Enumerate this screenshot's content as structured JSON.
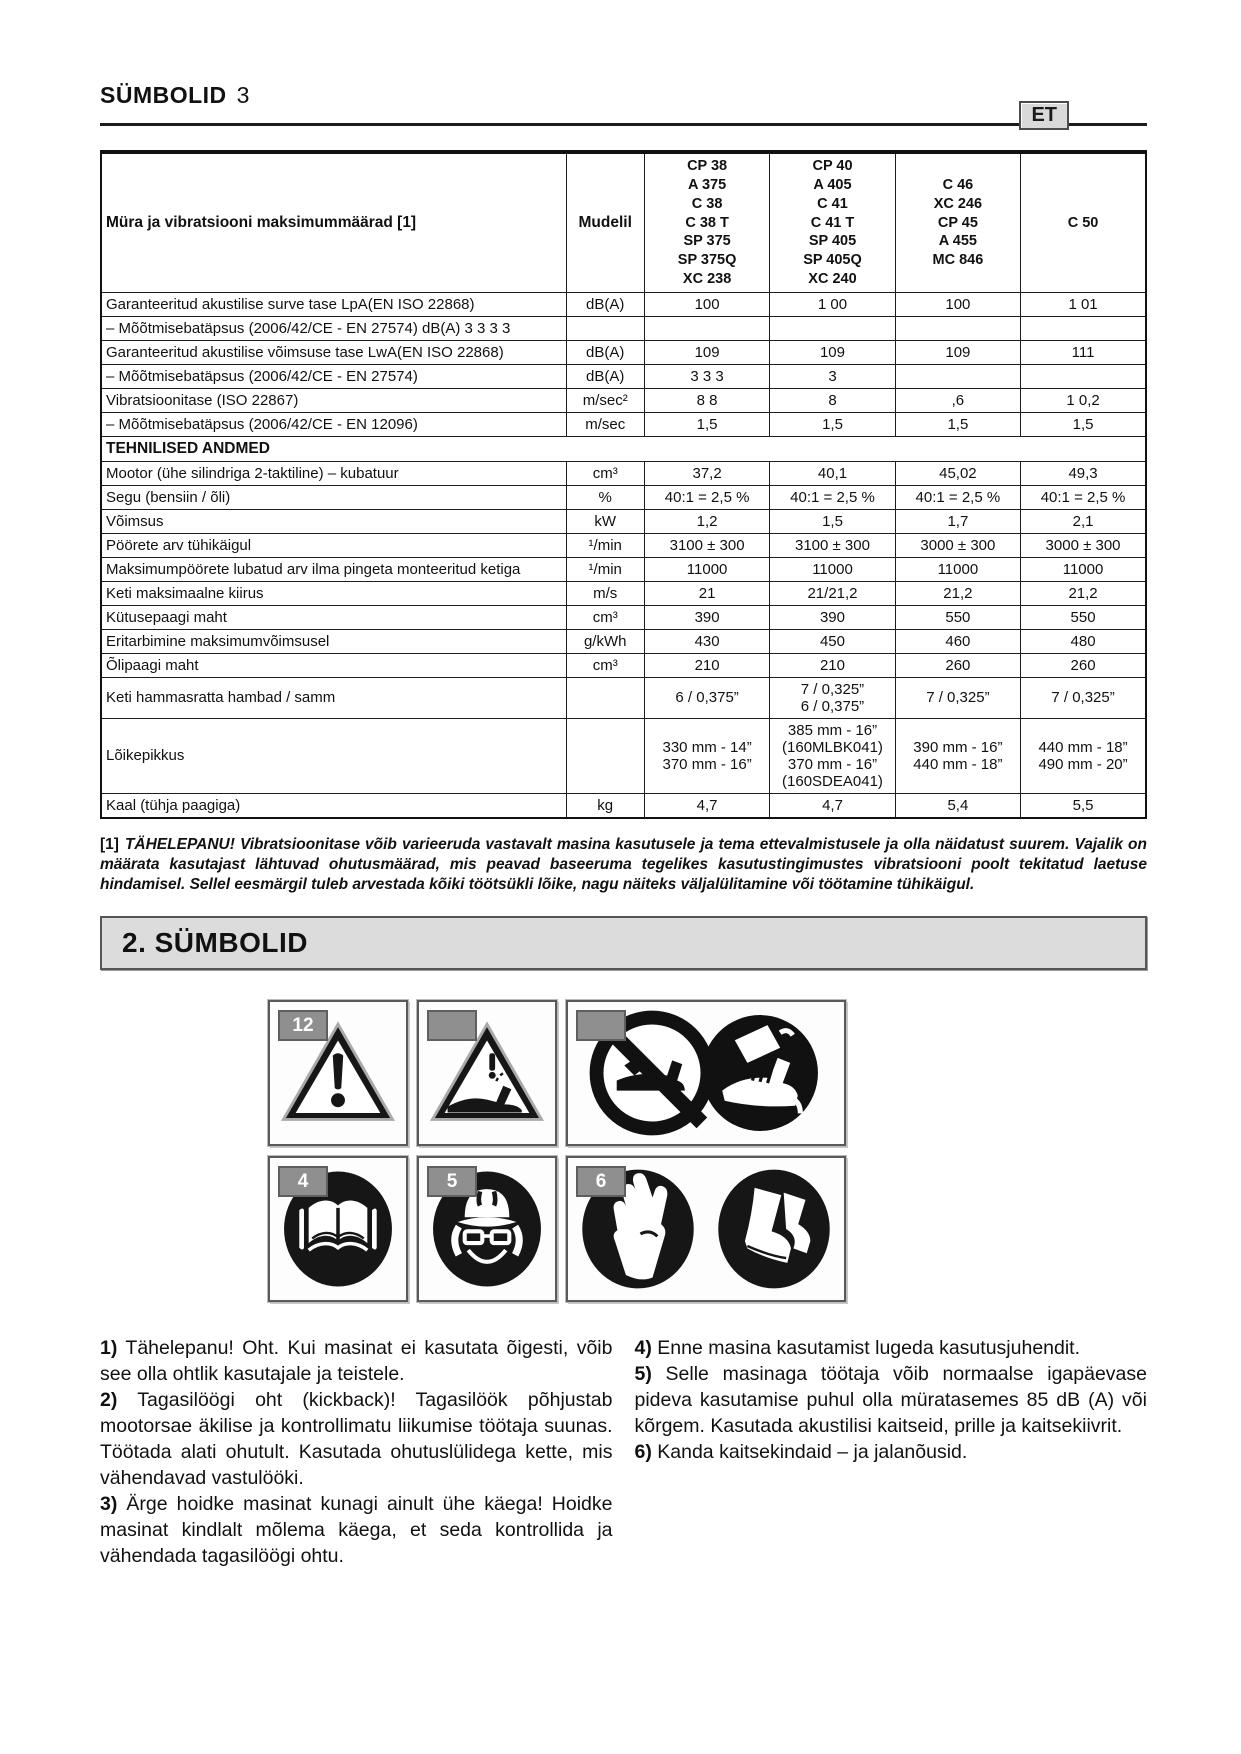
{
  "page": {
    "header_title": "SÜMBOLID",
    "header_number": "3",
    "lang_badge": "ET"
  },
  "colors": {
    "tag_bg": "#8f8f8f",
    "section_bar_bg": "#dcdcdc",
    "badge_bg": "#d9d9d9",
    "ink": "#111111"
  },
  "table": {
    "header": {
      "label": "Müra ja vibratsiooni maksimummäärad [1]",
      "unit": "Mudelil",
      "models": [
        "CP 38\nA 375\nC 38\nC 38 T\nSP 375\nSP 375Q\nXC 238",
        "CP 40\nA 405\nC 41\nC 41 T\nSP 405\nSP 405Q\nXC 240",
        "C 46\nXC 246\nCP 45\nA 455\nMC 846",
        "C 50"
      ]
    },
    "rows": [
      {
        "label": "Garanteeritud akustilise surve tase LpA(EN ISO 22868)",
        "unit": "dB(A)",
        "values": [
          "100",
          "1 00",
          "100",
          "1 01"
        ]
      },
      {
        "label": "– Mõõtmisebatäpsus (2006/42/CE - EN 27574)  dB(A)  3  3  3  3",
        "unit": "",
        "values": [
          "",
          "",
          "",
          ""
        ]
      },
      {
        "label": "Garanteeritud akustilise võimsuse tase LwA(EN ISO 22868)",
        "unit": "dB(A)",
        "values": [
          "109",
          "109",
          "109",
          "111"
        ]
      },
      {
        "label": "– Mõõtmisebatäpsus (2006/42/CE - EN 27574)",
        "unit": "dB(A)",
        "values": [
          "3 3 3",
          "3",
          "",
          ""
        ]
      },
      {
        "label": "Vibratsioonitase (ISO 22867)",
        "unit": "m/sec²",
        "values": [
          "8 8",
          "8",
          ",6",
          "1 0,2"
        ]
      },
      {
        "label": "– Mõõtmisebatäpsus (2006/42/CE - EN 12096)",
        "unit": "m/sec",
        "values": [
          "1,5",
          "1,5",
          "1,5",
          "1,5"
        ]
      },
      {
        "section": "TEHNILISED ANDMED"
      },
      {
        "label": "Mootor (ühe silindriga 2-taktiline) – kubatuur",
        "unit": "cm³",
        "values": [
          "37,2",
          "40,1",
          "45,02",
          "49,3"
        ]
      },
      {
        "label": "Segu (bensiin / õli)",
        "unit": "%",
        "values": [
          "40:1 = 2,5 %",
          "40:1 = 2,5 %",
          "40:1 = 2,5 %",
          "40:1 = 2,5 %"
        ]
      },
      {
        "label": "Võimsus",
        "unit": "kW",
        "values": [
          "1,2",
          "1,5",
          "1,7",
          "2,1"
        ]
      },
      {
        "label": "Pöörete arv tühikäigul",
        "unit": "¹/min",
        "values": [
          "3100 ± 300",
          "3100 ± 300",
          "3000 ± 300",
          "3000 ± 300"
        ]
      },
      {
        "label": "Maksimumpöörete lubatud arv ilma pingeta monteeritud ketiga",
        "unit": "¹/min",
        "values": [
          "11000",
          "11000",
          "11000",
          "11000"
        ]
      },
      {
        "label": "Keti maksimaalne kiirus",
        "unit": "m/s",
        "values": [
          "21",
          "21/21,2",
          "21,2",
          "21,2"
        ]
      },
      {
        "label": "Kütusepaagi maht",
        "unit": "cm³",
        "values": [
          "390",
          "390",
          "550",
          "550"
        ]
      },
      {
        "label": "Eritarbimine maksimumvõimsusel",
        "unit": "g/kWh",
        "values": [
          "430",
          "450",
          "460",
          "480"
        ]
      },
      {
        "label": "Õlipaagi maht",
        "unit": "cm³",
        "values": [
          "210",
          "210",
          "260",
          "260"
        ]
      },
      {
        "label": "Keti hammasratta hambad / samm",
        "unit": "",
        "values": [
          "6 / 0,375”",
          "7 / 0,325”\n6 / 0,375”",
          "7 / 0,325”",
          "7 / 0,325”"
        ]
      },
      {
        "label": "Lõikepikkus",
        "unit": "",
        "values": [
          "330 mm - 14”\n370 mm - 16”",
          "385 mm - 16”\n(160MLBK041)\n370 mm - 16”\n(160SDEA041)",
          "390 mm - 16”\n440 mm - 18”",
          "440 mm - 18”\n490 mm - 20”"
        ]
      },
      {
        "label": "Kaal (tühja paagiga)",
        "unit": "kg",
        "values": [
          "4,7",
          "4,7",
          "5,4",
          "5,5"
        ]
      }
    ]
  },
  "footnote": {
    "marker": "[1]",
    "text": "TÄHELEPANU! Vibratsioonitase võib varieeruda vastavalt masina kasutusele ja tema ettevalmistusele ja olla näidatust suurem. Vajalik on määrata kasutajast lähtuvad ohutusmäärad, mis peavad baseeruma tegelikes kasutustingimustes vibratsiooni poolt tekitatud laetuse hindamisel. Sellel eesmärgil tuleb arvestada kõiki töötsükli lõike, nagu näiteks väljalülitamine või töötamine tühikäigul."
  },
  "section": {
    "title": "2.  SÜMBOLID"
  },
  "symbols": [
    {
      "tag": "12",
      "icon": "general-warning-icon"
    },
    {
      "tag": "",
      "icon": "kickback-warning-icon"
    },
    {
      "tag": "",
      "icon": "no-one-hand-use-icon / two-hand-use-icon"
    },
    {
      "tag": "4",
      "icon": "read-manual-icon"
    },
    {
      "tag": "5",
      "icon": "head-eye-ear-protection-icon"
    },
    {
      "tag": "6",
      "icon": "protective-gloves-icon / protective-boots-icon"
    }
  ],
  "instructions": {
    "left": [
      {
        "num": "1)",
        "text": "Tähelepanu! Oht. Kui masinat ei kasutata õigesti, võib see olla ohtlik kasutajale ja teistele."
      },
      {
        "num": "2)",
        "text": "Tagasilöögi oht (kickback)! Tagasilöök põhjustab mootorsae äkilise ja kontrollimatu liikumise töötaja suunas. Töötada alati ohutult. Kasutada ohutuslülidega kette, mis vähendavad vastulööki."
      },
      {
        "num": "3)",
        "text": "Ärge hoidke masinat kunagi ainult ühe käega! Hoidke masinat kindlalt mõlema käega, et seda kontrollida ja vähendada tagasilöögi ohtu."
      }
    ],
    "right": [
      {
        "num": "4)",
        "text": "Enne masina kasutamist lugeda kasutusjuhendit."
      },
      {
        "num": "5)",
        "text": "Selle masinaga töötaja võib normaalse igapäevase pideva kasutamise puhul olla müratasemes 85 dB (A) või kõrgem. Kasutada akustilisi kaitseid, prille ja kaitsekiivrit."
      },
      {
        "num": "6)",
        "text": "Kanda kaitsekindaid – ja jalanõusid."
      }
    ]
  }
}
